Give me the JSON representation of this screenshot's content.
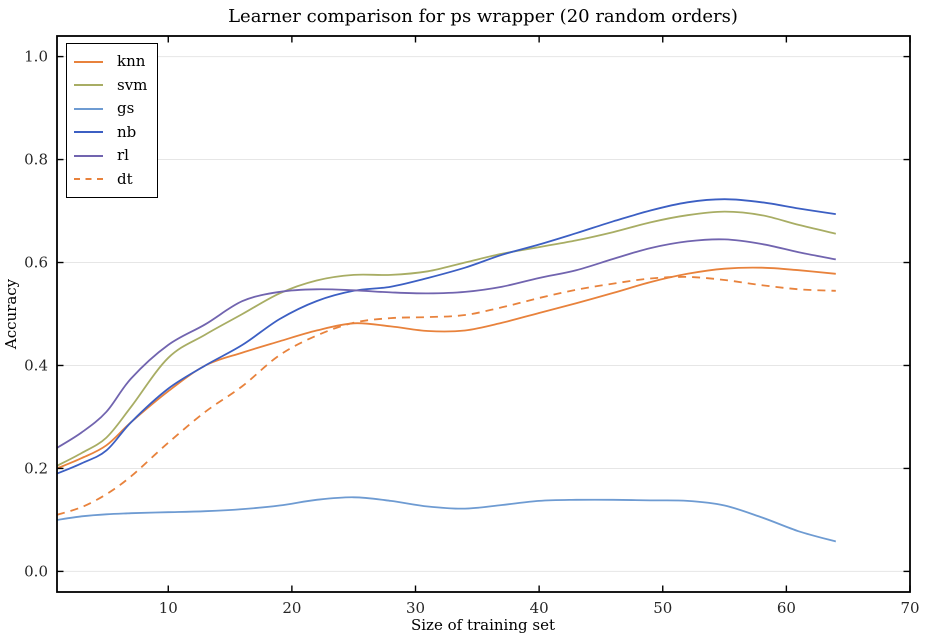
{
  "chart_data": {
    "type": "line",
    "title": "Learner comparison for ps wrapper (20 random orders)",
    "xlabel": "Size of training set",
    "ylabel": "Accuracy",
    "xlim": [
      1,
      70
    ],
    "ylim": [
      -0.04,
      1.04
    ],
    "xticks": [
      10,
      20,
      30,
      40,
      50,
      60,
      70
    ],
    "yticks": [
      0.0,
      0.2,
      0.4,
      0.6,
      0.8,
      1.0
    ],
    "grid": "horizontal-only",
    "grid_color": "#e6e6e6",
    "axis_color": "#000000",
    "legend_position": "upper-left",
    "legend_entries": [
      "knn",
      "svm",
      "gs",
      "nb",
      "rl",
      "dt"
    ],
    "x": [
      1,
      3,
      5,
      7,
      10,
      13,
      16,
      19,
      22,
      25,
      28,
      31,
      34,
      37,
      40,
      43,
      46,
      49,
      52,
      55,
      58,
      61,
      64
    ],
    "series": [
      {
        "name": "knn",
        "color": "#e8823c",
        "style": "solid",
        "values": [
          0.2,
          0.22,
          0.245,
          0.29,
          0.35,
          0.4,
          0.425,
          0.447,
          0.468,
          0.482,
          0.476,
          0.467,
          0.468,
          0.483,
          0.502,
          0.521,
          0.541,
          0.562,
          0.578,
          0.588,
          0.59,
          0.585,
          0.578
        ]
      },
      {
        "name": "svm",
        "color": "#a8ad64",
        "style": "solid",
        "values": [
          0.205,
          0.23,
          0.26,
          0.32,
          0.415,
          0.46,
          0.5,
          0.54,
          0.565,
          0.576,
          0.576,
          0.583,
          0.6,
          0.617,
          0.63,
          0.643,
          0.659,
          0.678,
          0.692,
          0.699,
          0.692,
          0.673,
          0.656
        ]
      },
      {
        "name": "gs",
        "color": "#6e9bd2",
        "style": "solid",
        "values": [
          0.1,
          0.107,
          0.111,
          0.113,
          0.115,
          0.117,
          0.121,
          0.128,
          0.139,
          0.144,
          0.137,
          0.126,
          0.122,
          0.129,
          0.137,
          0.139,
          0.139,
          0.138,
          0.137,
          0.128,
          0.105,
          0.078,
          0.058
        ]
      },
      {
        "name": "nb",
        "color": "#3c5fc3",
        "style": "solid",
        "values": [
          0.19,
          0.21,
          0.235,
          0.29,
          0.355,
          0.4,
          0.44,
          0.49,
          0.525,
          0.545,
          0.553,
          0.57,
          0.59,
          0.615,
          0.635,
          0.657,
          0.68,
          0.701,
          0.717,
          0.723,
          0.717,
          0.705,
          0.694
        ]
      },
      {
        "name": "rl",
        "color": "#7164af",
        "style": "solid",
        "values": [
          0.24,
          0.27,
          0.31,
          0.375,
          0.44,
          0.48,
          0.525,
          0.543,
          0.548,
          0.546,
          0.542,
          0.54,
          0.543,
          0.553,
          0.57,
          0.585,
          0.607,
          0.628,
          0.641,
          0.645,
          0.636,
          0.62,
          0.606
        ]
      },
      {
        "name": "dt",
        "color": "#e8823c",
        "style": "dashed",
        "values": [
          0.11,
          0.125,
          0.15,
          0.185,
          0.25,
          0.31,
          0.36,
          0.42,
          0.458,
          0.483,
          0.492,
          0.494,
          0.498,
          0.513,
          0.531,
          0.547,
          0.559,
          0.569,
          0.572,
          0.566,
          0.556,
          0.548,
          0.545
        ]
      }
    ]
  }
}
